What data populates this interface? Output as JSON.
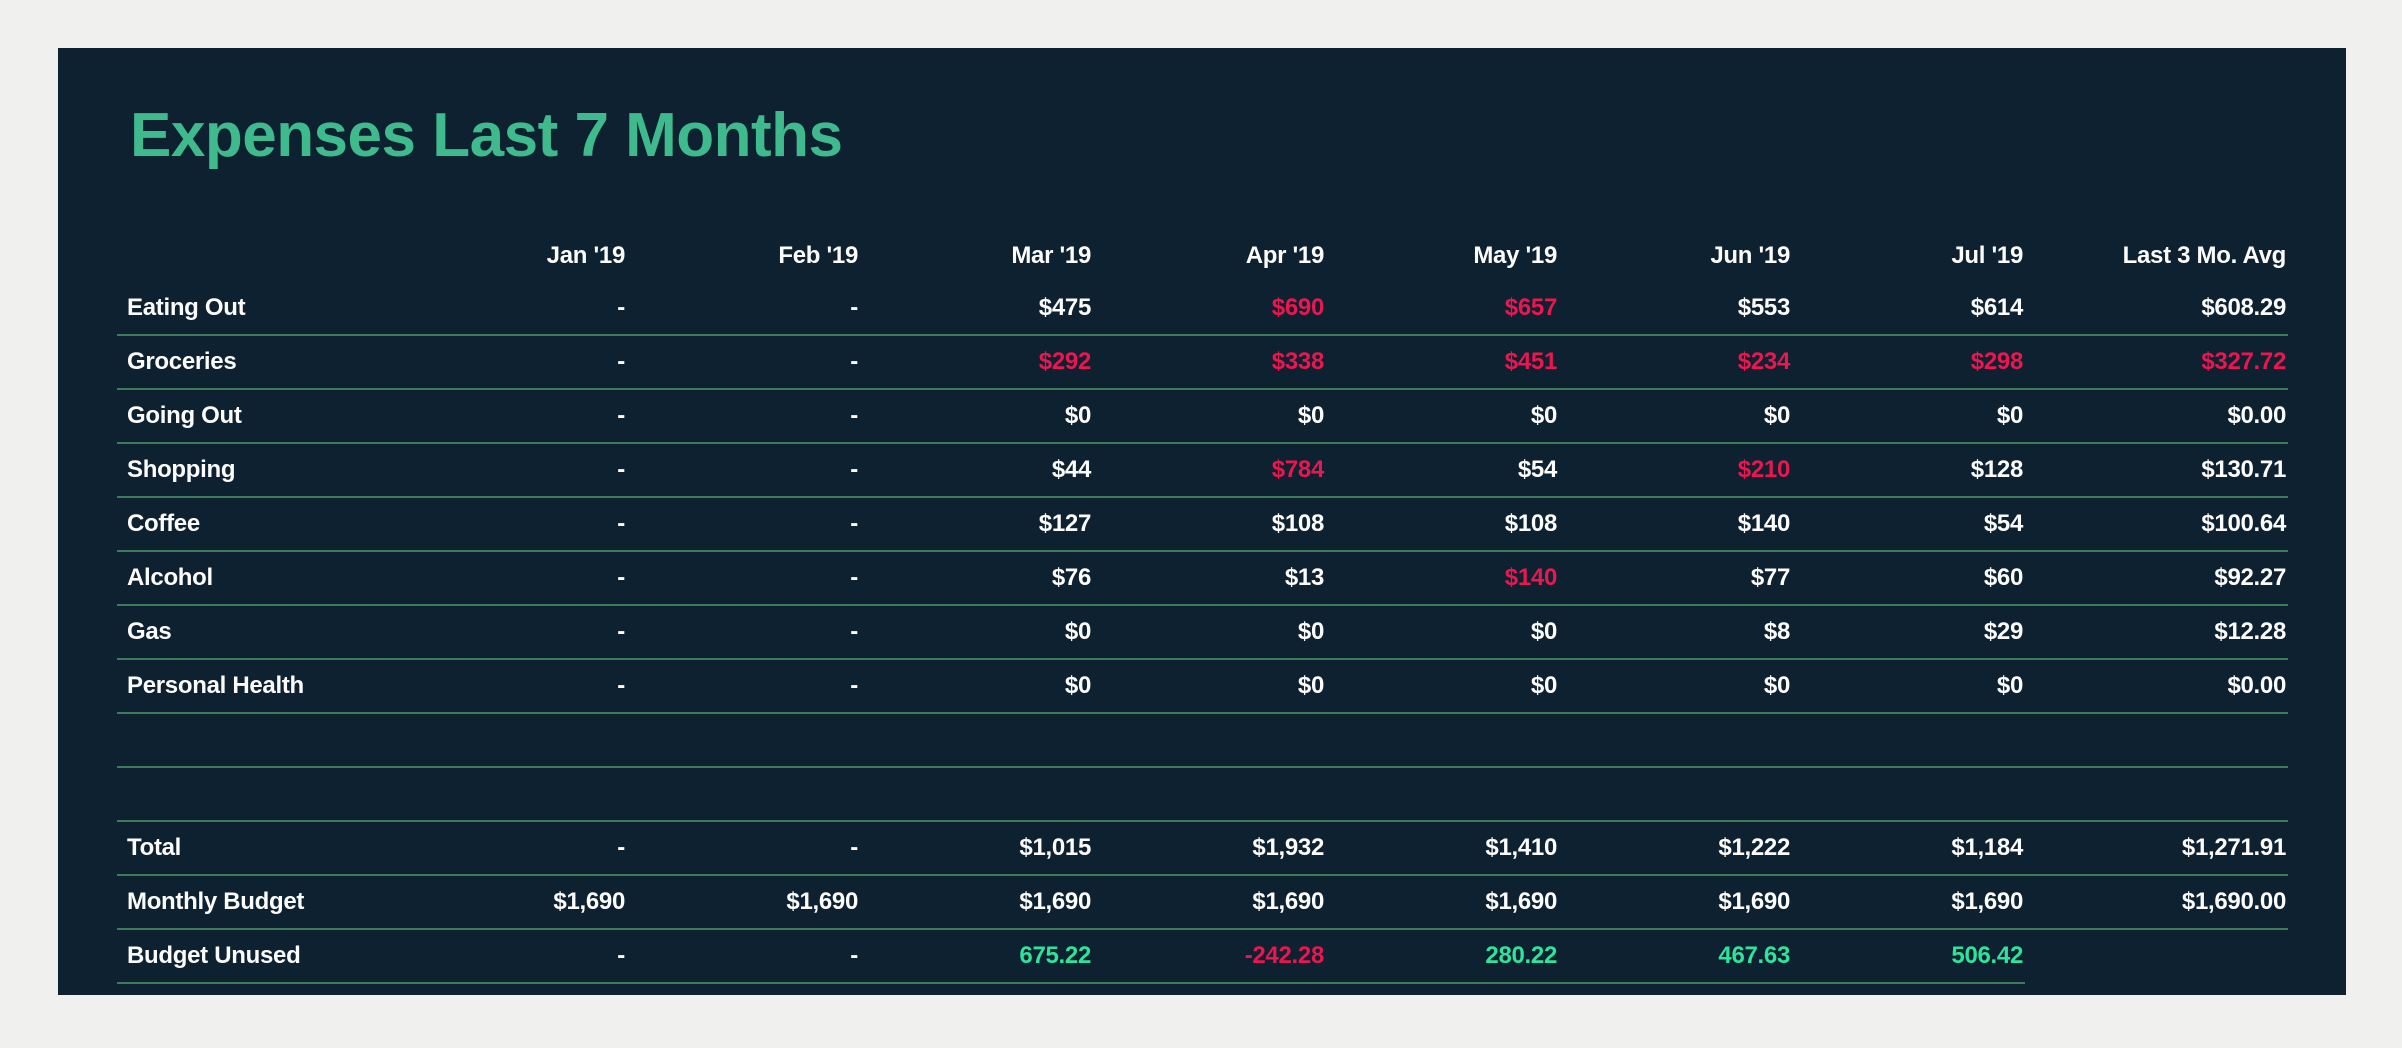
{
  "report": {
    "title": "Expenses Last 7 Months"
  },
  "colors": {
    "page_background": "#f0f0ee",
    "card_background": "#0d2130",
    "title_green": "#3fba8d",
    "positive_green": "#2de49b",
    "over_budget_red": "#e9164f",
    "divider_green": "#3a7c5c",
    "text_white": "#fcfcfc"
  },
  "table": {
    "columns": [
      "",
      "Jan '19",
      "Feb '19",
      "Mar '19",
      "Apr '19",
      "May '19",
      "Jun '19",
      "Jul '19",
      "Last 3 Mo. Avg"
    ],
    "rows": [
      {
        "label": "Eating Out",
        "cells": [
          {
            "t": "-"
          },
          {
            "t": "-"
          },
          {
            "t": "$475"
          },
          {
            "t": "$690",
            "c": "red"
          },
          {
            "t": "$657",
            "c": "red"
          },
          {
            "t": "$553"
          },
          {
            "t": "$614"
          },
          {
            "t": "$608.29"
          }
        ]
      },
      {
        "label": "Groceries",
        "cells": [
          {
            "t": "-"
          },
          {
            "t": "-"
          },
          {
            "t": "$292",
            "c": "red"
          },
          {
            "t": "$338",
            "c": "red"
          },
          {
            "t": "$451",
            "c": "red"
          },
          {
            "t": "$234",
            "c": "red"
          },
          {
            "t": "$298",
            "c": "red"
          },
          {
            "t": "$327.72",
            "c": "red"
          }
        ]
      },
      {
        "label": "Going Out",
        "cells": [
          {
            "t": "-"
          },
          {
            "t": "-"
          },
          {
            "t": "$0"
          },
          {
            "t": "$0"
          },
          {
            "t": "$0"
          },
          {
            "t": "$0"
          },
          {
            "t": "$0"
          },
          {
            "t": "$0.00"
          }
        ]
      },
      {
        "label": "Shopping",
        "cells": [
          {
            "t": "-"
          },
          {
            "t": "-"
          },
          {
            "t": "$44"
          },
          {
            "t": "$784",
            "c": "red"
          },
          {
            "t": "$54"
          },
          {
            "t": "$210",
            "c": "red"
          },
          {
            "t": "$128"
          },
          {
            "t": "$130.71"
          }
        ]
      },
      {
        "label": "Coffee",
        "cells": [
          {
            "t": "-"
          },
          {
            "t": "-"
          },
          {
            "t": "$127"
          },
          {
            "t": "$108"
          },
          {
            "t": "$108"
          },
          {
            "t": "$140"
          },
          {
            "t": "$54"
          },
          {
            "t": "$100.64"
          }
        ]
      },
      {
        "label": "Alcohol",
        "cells": [
          {
            "t": "-"
          },
          {
            "t": "-"
          },
          {
            "t": "$76"
          },
          {
            "t": "$13"
          },
          {
            "t": "$140",
            "c": "red"
          },
          {
            "t": "$77"
          },
          {
            "t": "$60"
          },
          {
            "t": "$92.27"
          }
        ]
      },
      {
        "label": "Gas",
        "cells": [
          {
            "t": "-"
          },
          {
            "t": "-"
          },
          {
            "t": "$0"
          },
          {
            "t": "$0"
          },
          {
            "t": "$0"
          },
          {
            "t": "$8"
          },
          {
            "t": "$29"
          },
          {
            "t": "$12.28"
          }
        ]
      },
      {
        "label": "Personal Health",
        "cells": [
          {
            "t": "-"
          },
          {
            "t": "-"
          },
          {
            "t": "$0"
          },
          {
            "t": "$0"
          },
          {
            "t": "$0"
          },
          {
            "t": "$0"
          },
          {
            "t": "$0"
          },
          {
            "t": "$0.00"
          }
        ]
      },
      {
        "spacer": true
      },
      {
        "spacer": true
      },
      {
        "label": "Total",
        "cells": [
          {
            "t": "-"
          },
          {
            "t": "-"
          },
          {
            "t": "$1,015"
          },
          {
            "t": "$1,932"
          },
          {
            "t": "$1,410"
          },
          {
            "t": "$1,222"
          },
          {
            "t": "$1,184"
          },
          {
            "t": "$1,271.91"
          }
        ]
      },
      {
        "label": "Monthly Budget",
        "cells": [
          {
            "t": "$1,690"
          },
          {
            "t": "$1,690"
          },
          {
            "t": "$1,690"
          },
          {
            "t": "$1,690"
          },
          {
            "t": "$1,690"
          },
          {
            "t": "$1,690"
          },
          {
            "t": "$1,690"
          },
          {
            "t": "$1,690.00"
          }
        ]
      },
      {
        "label": "Budget Unused",
        "cells": [
          {
            "t": "-"
          },
          {
            "t": "-"
          },
          {
            "t": "675.22",
            "c": "green"
          },
          {
            "t": "-242.28",
            "c": "red"
          },
          {
            "t": "280.22",
            "c": "green"
          },
          {
            "t": "467.63",
            "c": "green"
          },
          {
            "t": "506.42",
            "c": "green"
          },
          {
            "t": "",
            "u": false
          }
        ]
      }
    ]
  },
  "chart_data": {
    "type": "table",
    "title": "Expenses Last 7 Months",
    "categories": [
      "Jan '19",
      "Feb '19",
      "Mar '19",
      "Apr '19",
      "May '19",
      "Jun '19",
      "Jul '19",
      "Last 3 Mo. Avg"
    ],
    "series": [
      {
        "name": "Eating Out",
        "values": [
          null,
          null,
          475,
          690,
          657,
          553,
          614,
          608.29
        ]
      },
      {
        "name": "Groceries",
        "values": [
          null,
          null,
          292,
          338,
          451,
          234,
          298,
          327.72
        ]
      },
      {
        "name": "Going Out",
        "values": [
          null,
          null,
          0,
          0,
          0,
          0,
          0,
          0.0
        ]
      },
      {
        "name": "Shopping",
        "values": [
          null,
          null,
          44,
          784,
          54,
          210,
          128,
          130.71
        ]
      },
      {
        "name": "Coffee",
        "values": [
          null,
          null,
          127,
          108,
          108,
          140,
          54,
          100.64
        ]
      },
      {
        "name": "Alcohol",
        "values": [
          null,
          null,
          76,
          13,
          140,
          77,
          60,
          92.27
        ]
      },
      {
        "name": "Gas",
        "values": [
          null,
          null,
          0,
          0,
          0,
          8,
          29,
          12.28
        ]
      },
      {
        "name": "Personal Health",
        "values": [
          null,
          null,
          0,
          0,
          0,
          0,
          0,
          0.0
        ]
      },
      {
        "name": "Total",
        "values": [
          null,
          null,
          1015,
          1932,
          1410,
          1222,
          1184,
          1271.91
        ]
      },
      {
        "name": "Monthly Budget",
        "values": [
          1690,
          1690,
          1690,
          1690,
          1690,
          1690,
          1690,
          1690.0
        ]
      },
      {
        "name": "Budget Unused",
        "values": [
          null,
          null,
          675.22,
          -242.28,
          280.22,
          467.63,
          506.42,
          null
        ]
      }
    ],
    "layout": {
      "grid": "horizontal-row-dividers",
      "value_alignment": "right",
      "negative_or_over_budget_color": "#e9164f",
      "positive_color": "#2de49b"
    }
  }
}
